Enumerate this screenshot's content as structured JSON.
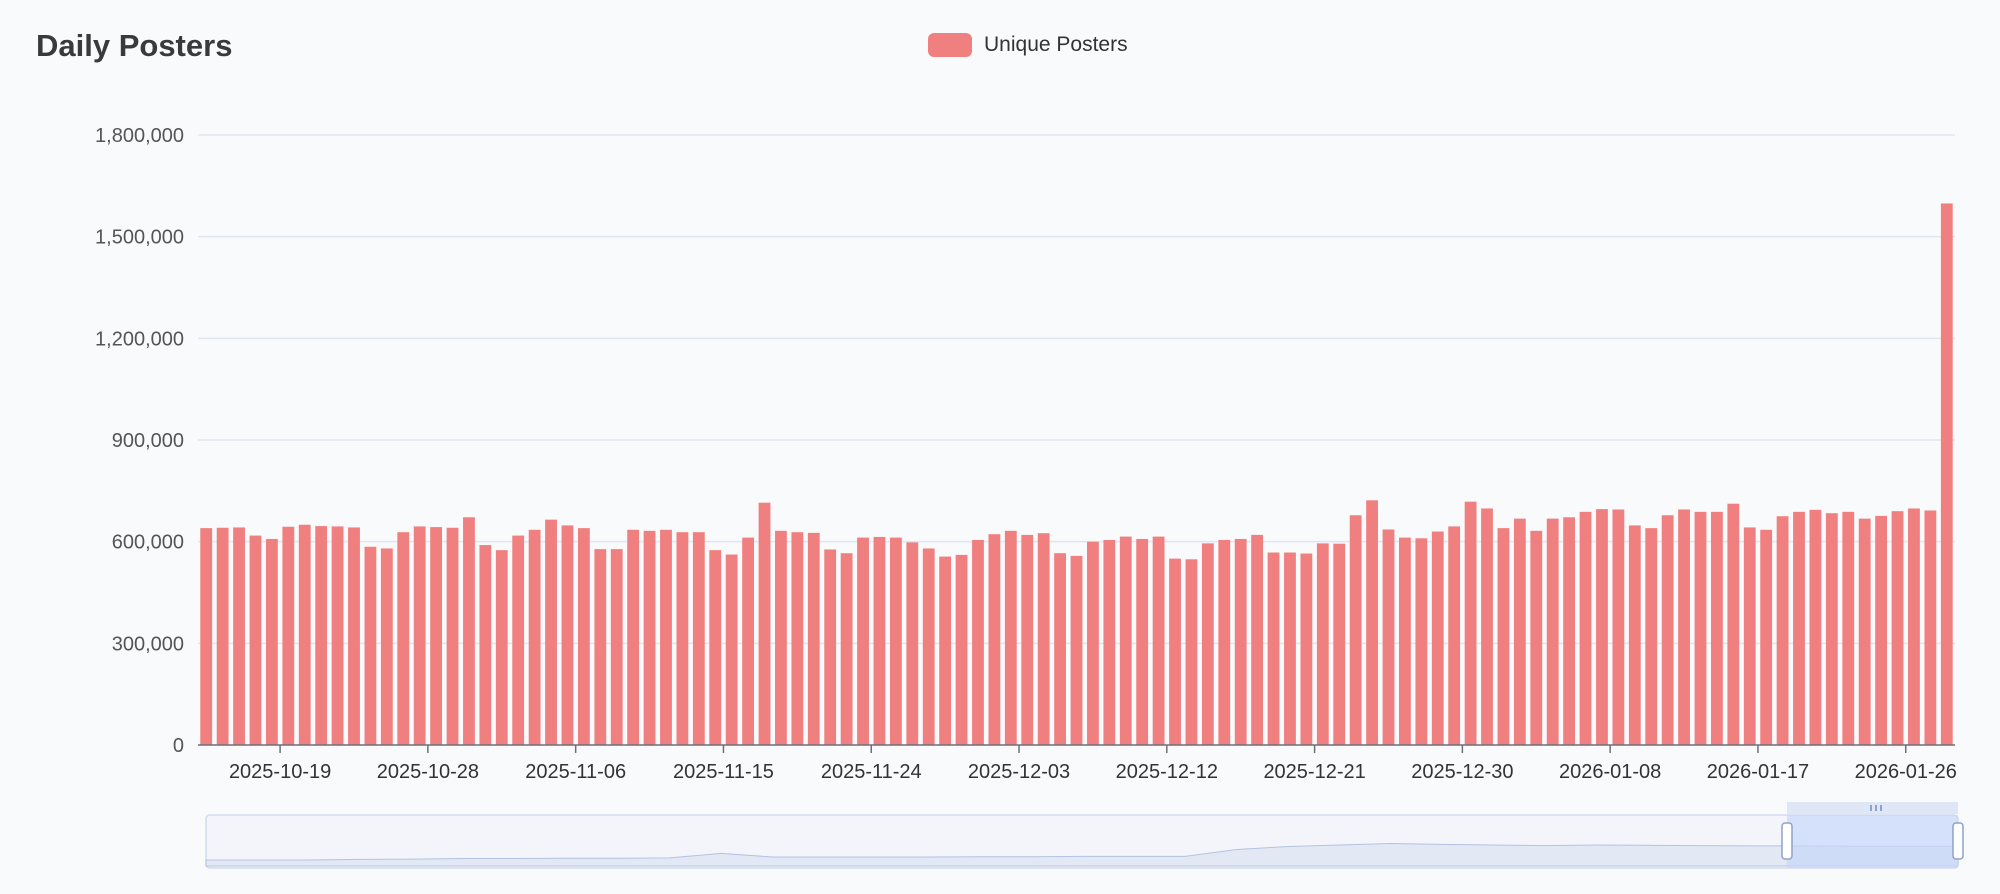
{
  "header": {
    "title": "Daily Posters"
  },
  "colors": {
    "bar": "#f08080",
    "grid": "#e0e6f1",
    "axis": "#6e7079",
    "zoom_fill": "#e2e8f4",
    "zoom_border": "#d2dbee",
    "zoom_selected": "#c8d7fa",
    "zoom_line": "#b4c3e2"
  },
  "chart_data": {
    "type": "bar",
    "title": "Daily Posters",
    "legend": {
      "position": "top-center"
    },
    "grid": true,
    "xlabel": "",
    "ylabel": "",
    "ylim": [
      0,
      1800000
    ],
    "yticks": [
      0,
      300000,
      600000,
      900000,
      1200000,
      1500000,
      1800000
    ],
    "ytick_labels": [
      "0",
      "300,000",
      "600,000",
      "900,000",
      "1,200,000",
      "1,500,000",
      "1,800,000"
    ],
    "start_date": "2025-10-15",
    "end_date": "2026-01-27",
    "xtick_labels": [
      "2025-10-19",
      "2025-10-28",
      "2025-11-06",
      "2025-11-15",
      "2025-11-24",
      "2025-12-03",
      "2025-12-12",
      "2025-12-21",
      "2025-12-30",
      "2026-01-08",
      "2026-01-17",
      "2026-01-26"
    ],
    "series": [
      {
        "name": "Unique Posters",
        "values": [
          640000,
          641000,
          642000,
          618000,
          608000,
          644000,
          650000,
          646000,
          645000,
          642000,
          585000,
          580000,
          628000,
          645000,
          643000,
          641000,
          672000,
          590000,
          575000,
          618000,
          635000,
          665000,
          648000,
          640000,
          578000,
          578000,
          635000,
          632000,
          635000,
          628000,
          628000,
          575000,
          562000,
          612000,
          715000,
          632000,
          628000,
          626000,
          577000,
          566000,
          612000,
          614000,
          612000,
          598000,
          580000,
          556000,
          561000,
          605000,
          622000,
          632000,
          620000,
          625000,
          566000,
          558000,
          600000,
          605000,
          615000,
          608000,
          615000,
          550000,
          548000,
          595000,
          605000,
          608000,
          620000,
          568000,
          568000,
          565000,
          595000,
          594000,
          678000,
          722000,
          636000,
          612000,
          610000,
          630000,
          645000,
          718000,
          698000,
          640000,
          668000,
          632000,
          668000,
          672000,
          688000,
          696000,
          695000,
          648000,
          640000,
          678000,
          695000,
          688000,
          688000,
          712000,
          642000,
          635000,
          675000,
          688000,
          694000,
          684000,
          688000,
          668000,
          676000,
          690000,
          698000,
          692000,
          1598000
        ]
      }
    ]
  }
}
